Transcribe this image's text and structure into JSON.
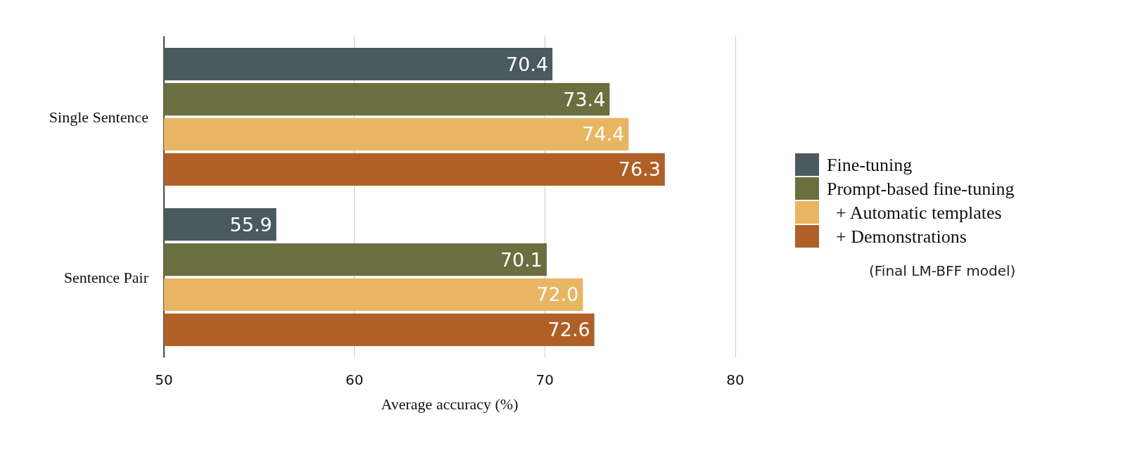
{
  "chart_data": {
    "type": "bar",
    "orientation": "horizontal",
    "xlabel": "Average accuracy (%)",
    "categories": [
      "Single Sentence",
      "Sentence Pair"
    ],
    "series": [
      {
        "name": "Fine-tuning",
        "color": "#4a5a5e",
        "values": [
          70.4,
          55.9
        ],
        "value_labels": [
          "70.4",
          "55.9"
        ]
      },
      {
        "name": "Prompt-based fine-tuning",
        "color": "#6b6e3f",
        "values": [
          73.4,
          70.1
        ],
        "value_labels": [
          "73.4",
          "70.1"
        ]
      },
      {
        "name": "  + Automatic templates",
        "color": "#e8b663",
        "values": [
          74.4,
          72.0
        ],
        "value_labels": [
          "74.4",
          "72.0"
        ]
      },
      {
        "name": "  + Demonstrations",
        "color": "#b05f26",
        "values": [
          76.3,
          72.6
        ],
        "value_labels": [
          "76.3",
          "72.6"
        ]
      }
    ],
    "xlim": [
      50,
      80
    ],
    "xticks": [
      50,
      60,
      70,
      80
    ],
    "grid": "x",
    "legend": "right",
    "annotations": [
      "(Final LM-BFF model)"
    ]
  }
}
